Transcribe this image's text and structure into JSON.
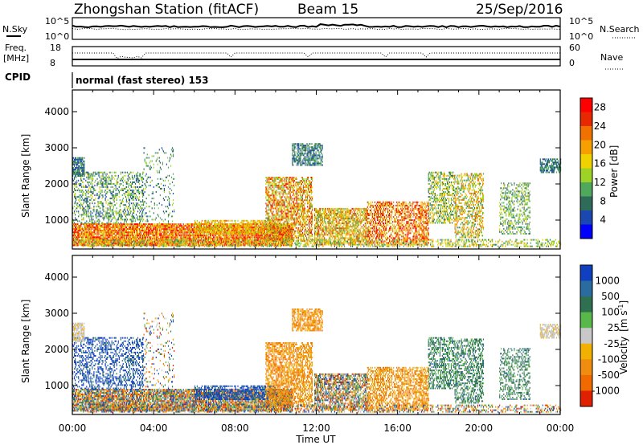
{
  "header": {
    "station": "Zhongshan Station (fitACF)",
    "beam": "Beam 15",
    "date": "25/Sep/2016"
  },
  "panels": {
    "nsky_label": "N.Sky",
    "nsearch_label": "N.Search",
    "nsky_ticks": [
      "10^5",
      "10^0"
    ],
    "nsearch_ticks": [
      "10^5",
      "10^0"
    ],
    "freq_label_1": "Freq.",
    "freq_label_2": "[MHz]",
    "freq_ticks": [
      "18",
      "8"
    ],
    "nave_label": "Nave",
    "nave_ticks": [
      "60",
      "0"
    ],
    "cpid_label": "CPID",
    "cpid_text": "normal (fast stereo) 153"
  },
  "chart_data": [
    {
      "type": "heatmap",
      "title": "",
      "xlabel": "Time UT",
      "ylabel": "Slant Range [km]",
      "xlim": [
        0,
        24
      ],
      "ylim": [
        200,
        4600
      ],
      "x_ticks": [
        "00:00",
        "04:00",
        "08:00",
        "12:00",
        "16:00",
        "20:00",
        "00:00"
      ],
      "y_ticks": [
        "1000",
        "2000",
        "3000",
        "4000"
      ],
      "colorbar": {
        "label": "Power [dB]",
        "ticks": [
          "4",
          "8",
          "12",
          "16",
          "20",
          "24",
          "28"
        ],
        "range": [
          0,
          30
        ],
        "colors": [
          "#0000ff",
          "#1a48b0",
          "#2f6b59",
          "#4fa85c",
          "#9ed226",
          "#f0d200",
          "#f5a000",
          "#f07000",
          "#e82800",
          "#ff0000"
        ]
      }
    },
    {
      "type": "heatmap",
      "title": "",
      "xlabel": "Time UT",
      "ylabel": "Slant Range [km]",
      "xlim": [
        0,
        24
      ],
      "ylim": [
        200,
        4600
      ],
      "x_ticks": [
        "00:00",
        "04:00",
        "08:00",
        "12:00",
        "16:00",
        "20:00",
        "00:00"
      ],
      "y_ticks": [
        "1000",
        "2000",
        "3000",
        "4000"
      ],
      "colorbar": {
        "label_main": "Velocity",
        "label_unit": "[m s",
        "label_exp": "-1",
        "label_close": "]",
        "ticks": [
          "1000",
          "500",
          "100",
          "25",
          "-25",
          "-100",
          "-500",
          "-1000"
        ],
        "colors": [
          "#1040c0",
          "#2a6ba0",
          "#2f7050",
          "#59b84a",
          "#c8c8c8",
          "#f2b000",
          "#f08c10",
          "#f06a00",
          "#e02000"
        ]
      }
    }
  ],
  "footer": {
    "time_label": "Time UT"
  }
}
